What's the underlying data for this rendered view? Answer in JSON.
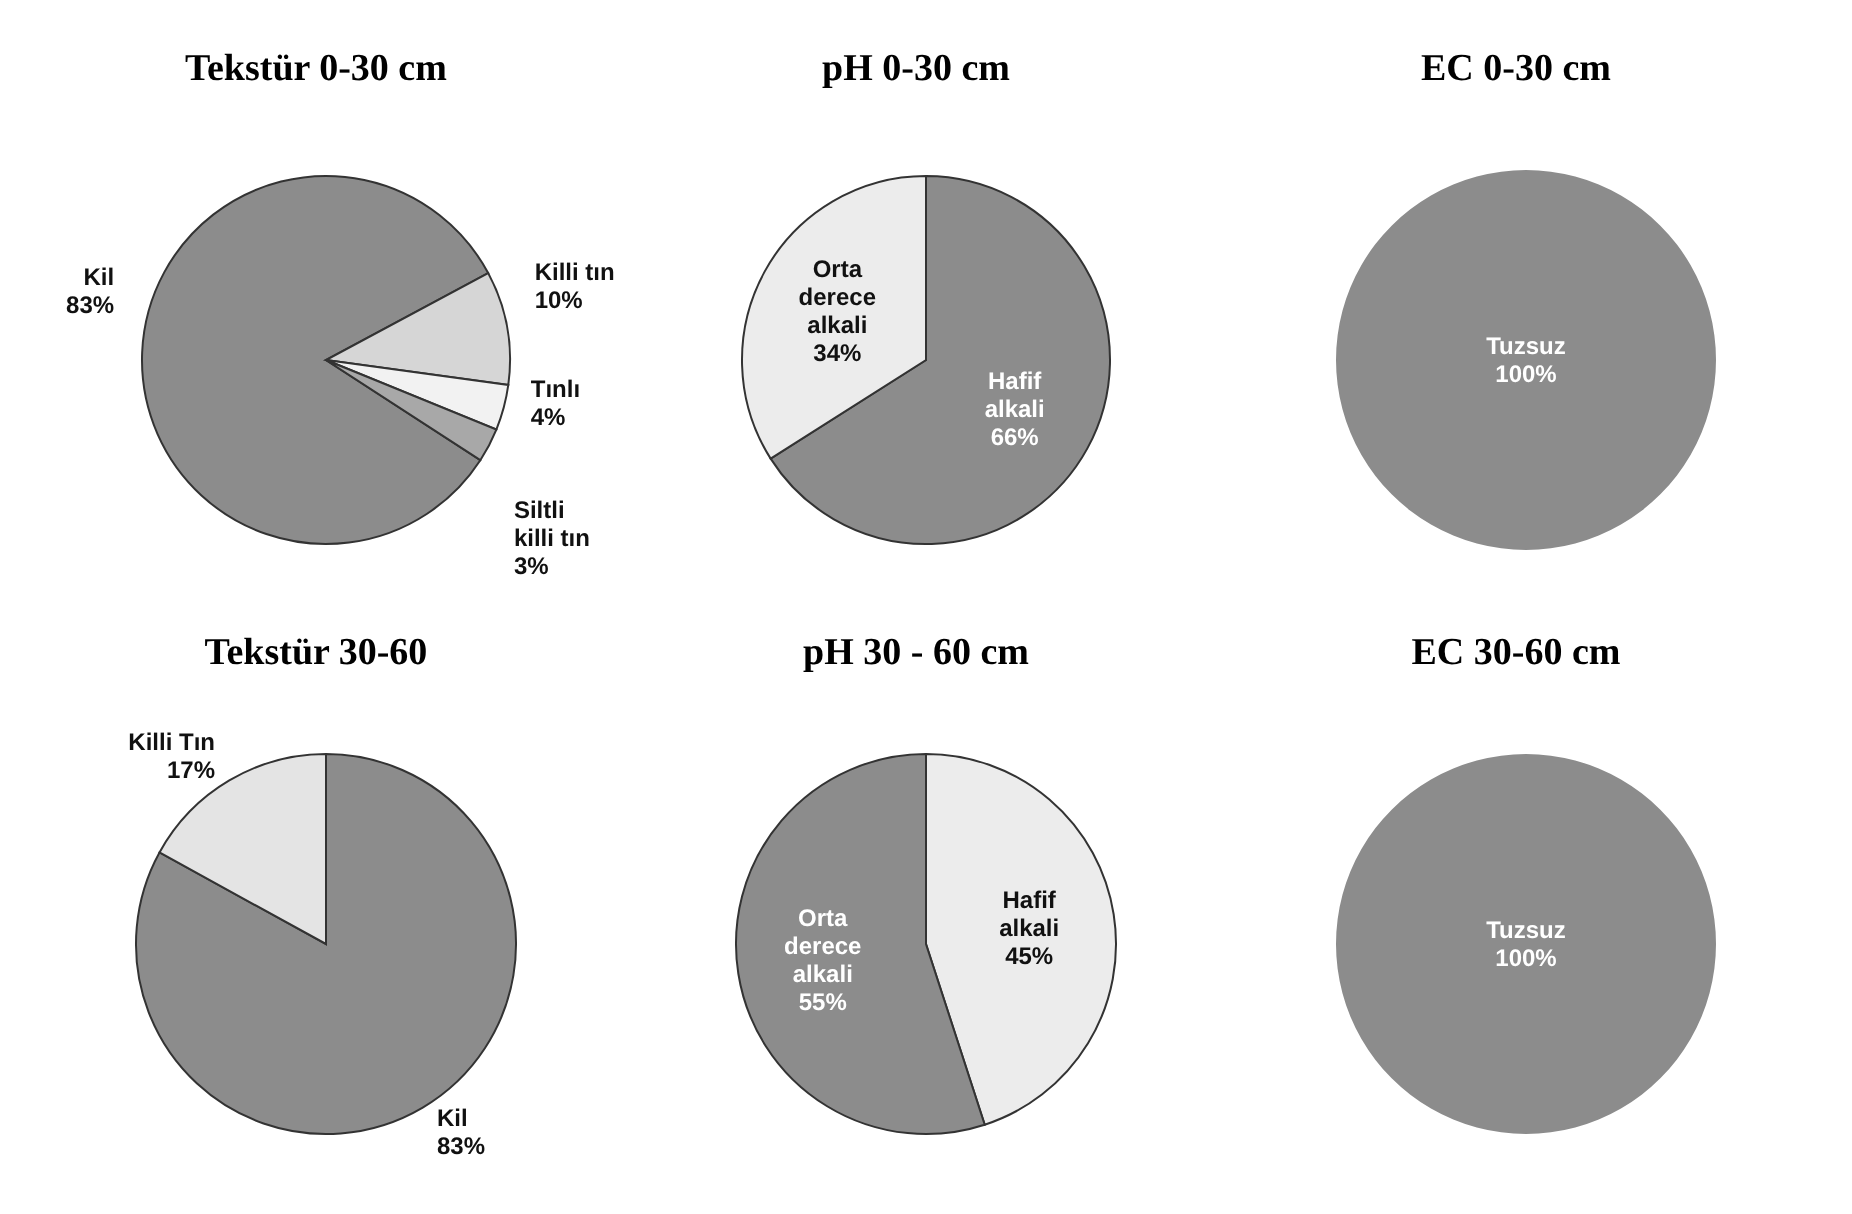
{
  "chart_data": [
    {
      "type": "pie",
      "title": "Tekstür 0-30 cm",
      "categories": [
        "Kil",
        "Killi tın",
        "Tınlı",
        "Siltli killi tın"
      ],
      "values": [
        83,
        10,
        4,
        3
      ],
      "colors": [
        "#8c8c8c",
        "#d6d6d6",
        "#f2f2f2",
        "#a8a8a8"
      ],
      "value_labels": [
        "83%",
        "10%",
        "4%",
        "3%"
      ]
    },
    {
      "type": "pie",
      "title": "pH 0-30 cm",
      "categories": [
        "Hafif alkali",
        "Orta derece alkali"
      ],
      "values": [
        66,
        34
      ],
      "colors": [
        "#8c8c8c",
        "#ececec"
      ],
      "value_labels": [
        "66%",
        "34%"
      ]
    },
    {
      "type": "pie",
      "title": "EC 0-30 cm",
      "categories": [
        "Tuzsuz"
      ],
      "values": [
        100
      ],
      "colors": [
        "#8c8c8c"
      ],
      "value_labels": [
        "100%"
      ]
    },
    {
      "type": "pie",
      "title": "Tekstür 30-60",
      "categories": [
        "Kil",
        "Killi Tın"
      ],
      "values": [
        83,
        17
      ],
      "colors": [
        "#8c8c8c",
        "#e4e4e4"
      ],
      "value_labels": [
        "83%",
        "17%"
      ]
    },
    {
      "type": "pie",
      "title": "pH 30 - 60 cm",
      "categories": [
        "Hafif alkali",
        "Orta derece alkali"
      ],
      "values": [
        45,
        55
      ],
      "colors": [
        "#ececec",
        "#8c8c8c"
      ],
      "value_labels": [
        "45%",
        "55%"
      ]
    },
    {
      "type": "pie",
      "title": "EC 30-60 cm",
      "categories": [
        "Tuzsuz"
      ],
      "values": [
        100
      ],
      "colors": [
        "#8c8c8c"
      ],
      "value_labels": [
        "100%"
      ]
    }
  ]
}
